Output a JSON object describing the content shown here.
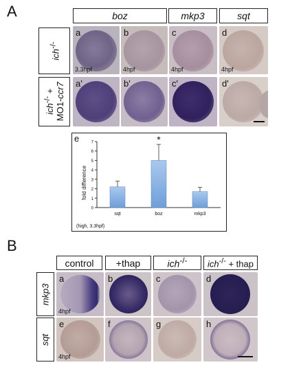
{
  "panelA": {
    "letter": "A",
    "headers": [
      "boz",
      "mkp3",
      "sqt"
    ],
    "row_labels": [
      "ich-/-",
      "ich-/- + MO1-ccr7"
    ],
    "row1": {
      "html": "<i>ich</i><sup>-/-</sup>"
    },
    "row2": {
      "html": "<i>ich</i><sup>-/-</sup> +<br>MO1-<i>ccr7</i>"
    },
    "images_top": [
      {
        "label": "a",
        "stage": "3.3hpf"
      },
      {
        "label": "b",
        "stage": "4hpf"
      },
      {
        "label": "c",
        "stage": "4hpf"
      },
      {
        "label": "d",
        "stage": "4hpf"
      }
    ],
    "images_bottom": [
      {
        "label": "a'"
      },
      {
        "label": "b'"
      },
      {
        "label": "c'"
      },
      {
        "label": "d'"
      }
    ]
  },
  "panelE": {
    "letter": "e",
    "note": "(high, 3.3hpf)",
    "asterisk": "*"
  },
  "chart_data": {
    "type": "bar",
    "categories": [
      "sqt",
      "boz",
      "mkp3"
    ],
    "values": [
      2.2,
      5.0,
      1.7
    ],
    "errors": [
      0.6,
      1.7,
      0.45
    ],
    "ylabel": "fold difference",
    "ylim": [
      0,
      7
    ],
    "yticks": [
      0,
      1,
      2,
      3,
      4,
      5,
      6,
      7
    ],
    "grid": false,
    "bar_color": "#6f9fd8"
  },
  "panelB": {
    "letter": "B",
    "headers": [
      "control",
      "+thap",
      "ich-/-",
      "ich-/- + thap"
    ],
    "row_labels": [
      "mkp3",
      "sqt"
    ],
    "images_top": [
      {
        "label": "a",
        "stage": "4hpf"
      },
      {
        "label": "b"
      },
      {
        "label": "c"
      },
      {
        "label": "d"
      }
    ],
    "images_bottom": [
      {
        "label": "e",
        "stage": "4hpf"
      },
      {
        "label": "f"
      },
      {
        "label": "g"
      },
      {
        "label": "h"
      }
    ]
  }
}
